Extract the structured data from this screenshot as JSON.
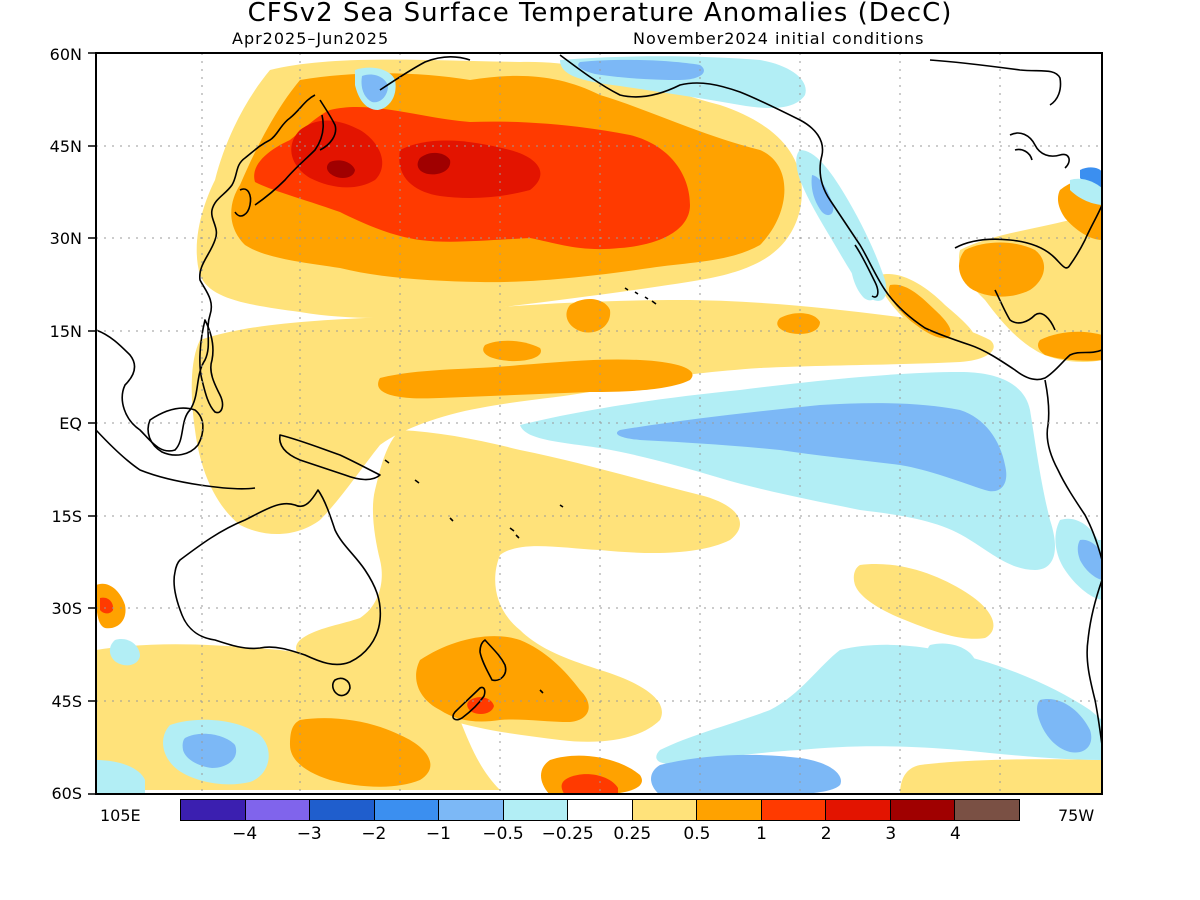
{
  "title": "CFSv2 Sea Surface Temperature Anomalies (DecC)",
  "subtitle_left": "Apr2025–Jun2025",
  "subtitle_right": "November2024 initial conditions",
  "lat_labels": [
    "60N",
    "45N",
    "30N",
    "15N",
    "EQ",
    "15S",
    "30S",
    "45S",
    "60S"
  ],
  "lon_labels": {
    "west": "105E",
    "east": "75W"
  },
  "legend": {
    "colors": [
      "#3b1fb0",
      "#8064ec",
      "#1f5ecd",
      "#3b8ff0",
      "#7cb8f6",
      "#b2eef5",
      "#ffffff",
      "#ffe27a",
      "#ffa200",
      "#ff3a00",
      "#e31400",
      "#a00000",
      "#7a5044"
    ],
    "labels": [
      "−4",
      "−3",
      "−2",
      "−1",
      "−0.5",
      "−0.25",
      "0.25",
      "0.5",
      "1",
      "2",
      "3",
      "4"
    ]
  },
  "map_colors": {
    "pale_yellow": "#ffe27a",
    "orange": "#ffa200",
    "red_orange": "#ff3a00",
    "red": "#e31400",
    "dark_red": "#a00000",
    "light_blue": "#b2eef5",
    "blue": "#7cb8f6",
    "mid_blue": "#3b8ff0"
  }
}
